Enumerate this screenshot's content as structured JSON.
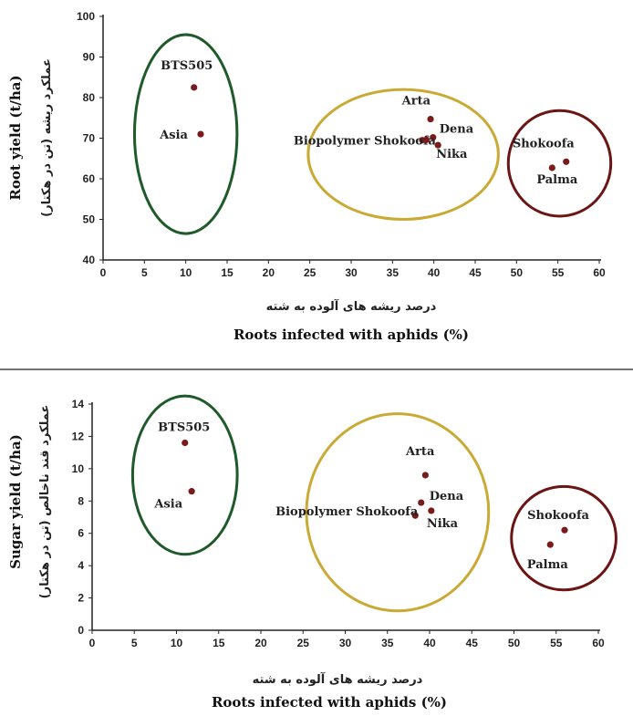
{
  "colors": {
    "point": "#7a1b1b",
    "axis": "#222222",
    "divider": "#444444"
  },
  "chart_data": [
    {
      "type": "scatter",
      "xlabel": "Roots infected with aphids (%)",
      "xlabel_fa": "درصد ریشه های آلوده به شته",
      "ylabel": "Root yield (t/ha)",
      "ylabel_fa": "عملکرد ریشه (تن در هکتار)",
      "xlim": [
        0,
        60
      ],
      "ylim": [
        40,
        100
      ],
      "xticks": [
        "0",
        "5",
        "10",
        "15",
        "20",
        "25",
        "30",
        "35",
        "40",
        "45",
        "50",
        "55",
        "60"
      ],
      "yticks": [
        "40",
        "50",
        "60",
        "70",
        "80",
        "90",
        "100"
      ],
      "grid": false,
      "points": [
        {
          "label": "BTS505",
          "x": 11.0,
          "y": 82.5
        },
        {
          "label": "Asia",
          "x": 11.8,
          "y": 71.0
        },
        {
          "label": "Arta",
          "x": 39.6,
          "y": 74.7
        },
        {
          "label": "Dena",
          "x": 39.9,
          "y": 70.2
        },
        {
          "label": "Biopolymer Shokoofa",
          "x": 38.6,
          "y": 69.5
        },
        {
          "label": "",
          "x": 39.1,
          "y": 69.6
        },
        {
          "label": "Nika",
          "x": 40.5,
          "y": 68.3
        },
        {
          "label": "Shokoofa",
          "x": 56.0,
          "y": 64.2
        },
        {
          "label": "Palma",
          "x": 54.3,
          "y": 62.7
        }
      ],
      "groups": [
        {
          "color": "#1f5a2a",
          "cx": 10.0,
          "cy": 71.0,
          "rx": 6.2,
          "ry": 24.5
        },
        {
          "color": "#c9aa35",
          "cx": 36.3,
          "cy": 66.0,
          "rx": 11.5,
          "ry": 16.0
        },
        {
          "color": "#6b1515",
          "cx": 55.2,
          "cy": 63.8,
          "rx": 6.2,
          "ry": 13.0
        }
      ]
    },
    {
      "type": "scatter",
      "xlabel": "Roots infected with aphids (%)",
      "xlabel_fa": "درصد ریشه های آلوده به شته",
      "ylabel": "Sugar yield (t/ha)",
      "ylabel_fa": "عملکرد قند ناخالص (تن در هکتار)",
      "xlim": [
        0,
        60
      ],
      "ylim": [
        0,
        14
      ],
      "xticks": [
        "0",
        "5",
        "10",
        "15",
        "20",
        "25",
        "30",
        "35",
        "40",
        "45",
        "50",
        "55",
        "60"
      ],
      "yticks": [
        "0",
        "2",
        "4",
        "6",
        "8",
        "10",
        "12",
        "14"
      ],
      "grid": false,
      "points": [
        {
          "label": "BTS505",
          "x": 11.0,
          "y": 11.6
        },
        {
          "label": "Asia",
          "x": 11.8,
          "y": 8.6
        },
        {
          "label": "Arta",
          "x": 39.5,
          "y": 9.6
        },
        {
          "label": "Dena",
          "x": 39.0,
          "y": 7.9
        },
        {
          "label": "Biopolymer Shokoofa",
          "x": 38.3,
          "y": 7.1
        },
        {
          "label": "Nika",
          "x": 40.2,
          "y": 7.4
        },
        {
          "label": "Shokoofa",
          "x": 56.0,
          "y": 6.2
        },
        {
          "label": "Palma",
          "x": 54.3,
          "y": 5.3
        }
      ],
      "groups": [
        {
          "color": "#1f5a2a",
          "cx": 11.0,
          "cy": 9.6,
          "rx": 6.2,
          "ry": 4.9
        },
        {
          "color": "#c9aa35",
          "cx": 36.2,
          "cy": 7.3,
          "rx": 10.8,
          "ry": 6.1
        },
        {
          "color": "#6b1515",
          "cx": 55.9,
          "cy": 5.7,
          "rx": 6.2,
          "ry": 3.2
        }
      ]
    }
  ]
}
